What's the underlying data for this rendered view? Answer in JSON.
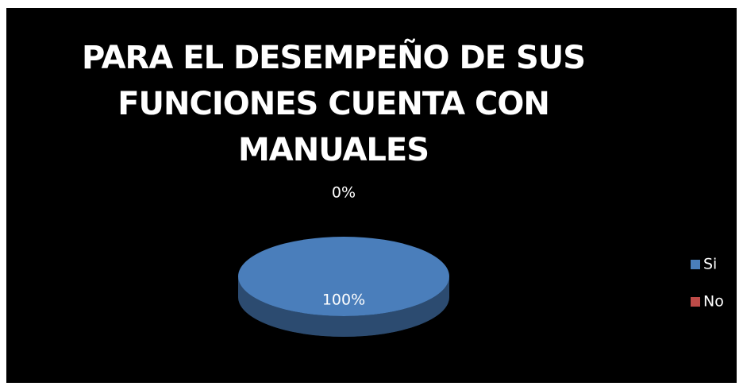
{
  "chart_data": {
    "type": "pie",
    "title": "PARA EL DESEMPEÑO DE SUS FUNCIONES CUENTA CON MANUALES",
    "categories": [
      "Si",
      "No"
    ],
    "values": [
      100,
      0
    ],
    "value_labels": [
      "100%",
      "0%"
    ],
    "colors": [
      "#4a7ebb",
      "#be4b48"
    ],
    "legend": "right"
  }
}
